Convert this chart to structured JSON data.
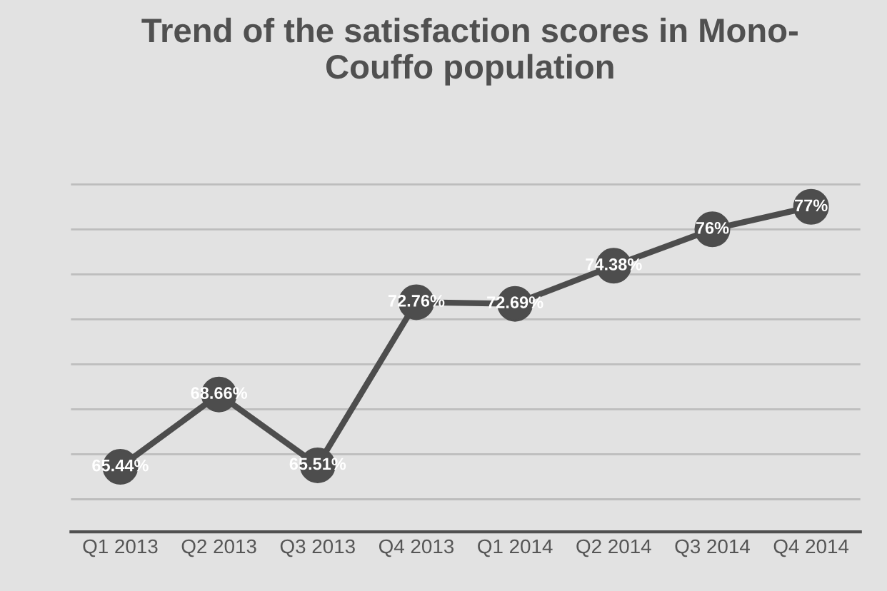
{
  "chart_data": {
    "type": "line",
    "title": "Trend of the satisfaction scores in Mono-\nCouffo population",
    "categories": [
      "Q1 2013",
      "Q2 2013",
      "Q3 2013",
      "Q4 2013",
      "Q1 2014",
      "Q2 2014",
      "Q3 2014",
      "Q4 2014"
    ],
    "values": [
      65.44,
      68.66,
      65.51,
      72.76,
      72.69,
      74.38,
      76,
      77
    ],
    "value_labels": [
      "65.44%",
      "68.66%",
      "65.51%",
      "72.76%",
      "72.69%",
      "74.38%",
      "76%",
      "77%"
    ],
    "color": "#4d4d4d",
    "marker": "circle",
    "line_style": "solid",
    "grid": "y",
    "tick_labels": "x",
    "legend": false
  }
}
